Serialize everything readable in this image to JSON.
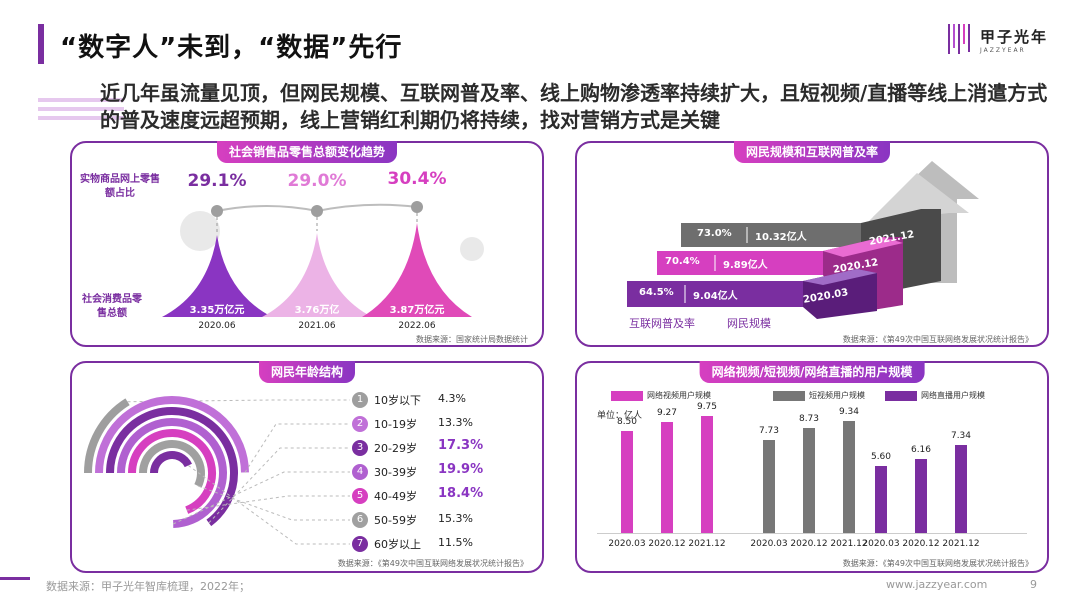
{
  "title": "“数字人”未到，“数据”先行",
  "brand": {
    "name": "甲子光年",
    "sub": "JAZZYEAR"
  },
  "headline": "近几年虽流量见顶，但网民规模、互联网普及率、线上购物渗透率持续扩大，且短视频/直播等线上消遣方式的普及速度远超预期，线上营销红利期仍将持续，找对营销方式是关键",
  "colors": {
    "accent": "#7a2ea0",
    "pink": "#d63fc0",
    "purple": "#8a35c2",
    "gray": "#777777"
  },
  "retail": {
    "title": "社会销售品零售总额变化趋势",
    "online_label": "实物商品网上零售额占比",
    "total_label": "社会消费品零售总额",
    "items": [
      {
        "pct": "29.1%",
        "value": "3.35万亿元",
        "date": "2020.06"
      },
      {
        "pct": "29.0%",
        "value": "3.76万亿",
        "date": "2021.06"
      },
      {
        "pct": "30.4%",
        "value": "3.87万亿元",
        "date": "2022.06"
      }
    ],
    "source": "数据来源：国家统计局数据统计"
  },
  "netizen": {
    "title": "网民规模和互联网普及率",
    "rows": [
      {
        "rate": "73.0%",
        "scale": "10.32亿人",
        "date": "2021.12"
      },
      {
        "rate": "70.4%",
        "scale": "9.89亿人",
        "date": "2020.12"
      },
      {
        "rate": "64.5%",
        "scale": "9.04亿人",
        "date": "2020.03"
      }
    ],
    "legend_rate": "互联网普及率",
    "legend_scale": "网民规模",
    "source": "数据来源：《第49次中国互联网络发展状况统计报告》"
  },
  "age": {
    "title": "网民年龄结构",
    "items": [
      {
        "num": "1",
        "label": "10岁以下",
        "pct": "4.3%",
        "value": 4.3,
        "highlight": false
      },
      {
        "num": "2",
        "label": "10-19岁",
        "pct": "13.3%",
        "value": 13.3,
        "highlight": false
      },
      {
        "num": "3",
        "label": "20-29岁",
        "pct": "17.3%",
        "value": 17.3,
        "highlight": true
      },
      {
        "num": "4",
        "label": "30-39岁",
        "pct": "19.9%",
        "value": 19.9,
        "highlight": true
      },
      {
        "num": "5",
        "label": "40-49岁",
        "pct": "18.4%",
        "value": 18.4,
        "highlight": true
      },
      {
        "num": "6",
        "label": "50-59岁",
        "pct": "15.3%",
        "value": 15.3,
        "highlight": false
      },
      {
        "num": "7",
        "label": "60岁以上",
        "pct": "11.5%",
        "value": 11.5,
        "highlight": false
      }
    ],
    "source": "数据来源：《第49次中国互联网络发展状况统计报告》"
  },
  "video": {
    "title": "网络视频/短视频/网络直播的用户规模",
    "unit": "单位：亿人",
    "source": "数据来源：《第49次中国互联网络发展状况统计报告》"
  },
  "chart_data": {
    "type": "bar",
    "title": "网络视频/短视频/网络直播的用户规模",
    "ylabel": "单位：亿人",
    "ylim": [
      0,
      10
    ],
    "legend": "top",
    "series": [
      {
        "name": "网络视频用户规模",
        "color": "#d63fc0",
        "categories": [
          "2020.03",
          "2020.12",
          "2021.12"
        ],
        "values": [
          8.5,
          9.27,
          9.75
        ],
        "labels": [
          "8.50",
          "9.27",
          "9.75"
        ]
      },
      {
        "name": "短视频用户规模",
        "color": "#777777",
        "categories": [
          "2020.03",
          "2020.12",
          "2021.12"
        ],
        "values": [
          7.73,
          8.73,
          9.34
        ],
        "labels": [
          "7.73",
          "8.73",
          "9.34"
        ]
      },
      {
        "name": "网络直播用户规模",
        "color": "#7a2ea0",
        "categories": [
          "2020.03",
          "2020.12",
          "2021.12"
        ],
        "values": [
          5.6,
          6.16,
          7.34
        ],
        "labels": [
          "5.60",
          "6.16",
          "7.34"
        ]
      }
    ]
  },
  "footer": {
    "source": "数据来源：甲子光年智库梳理，2022年；",
    "url": "www.jazzyear.com",
    "page": "9"
  }
}
